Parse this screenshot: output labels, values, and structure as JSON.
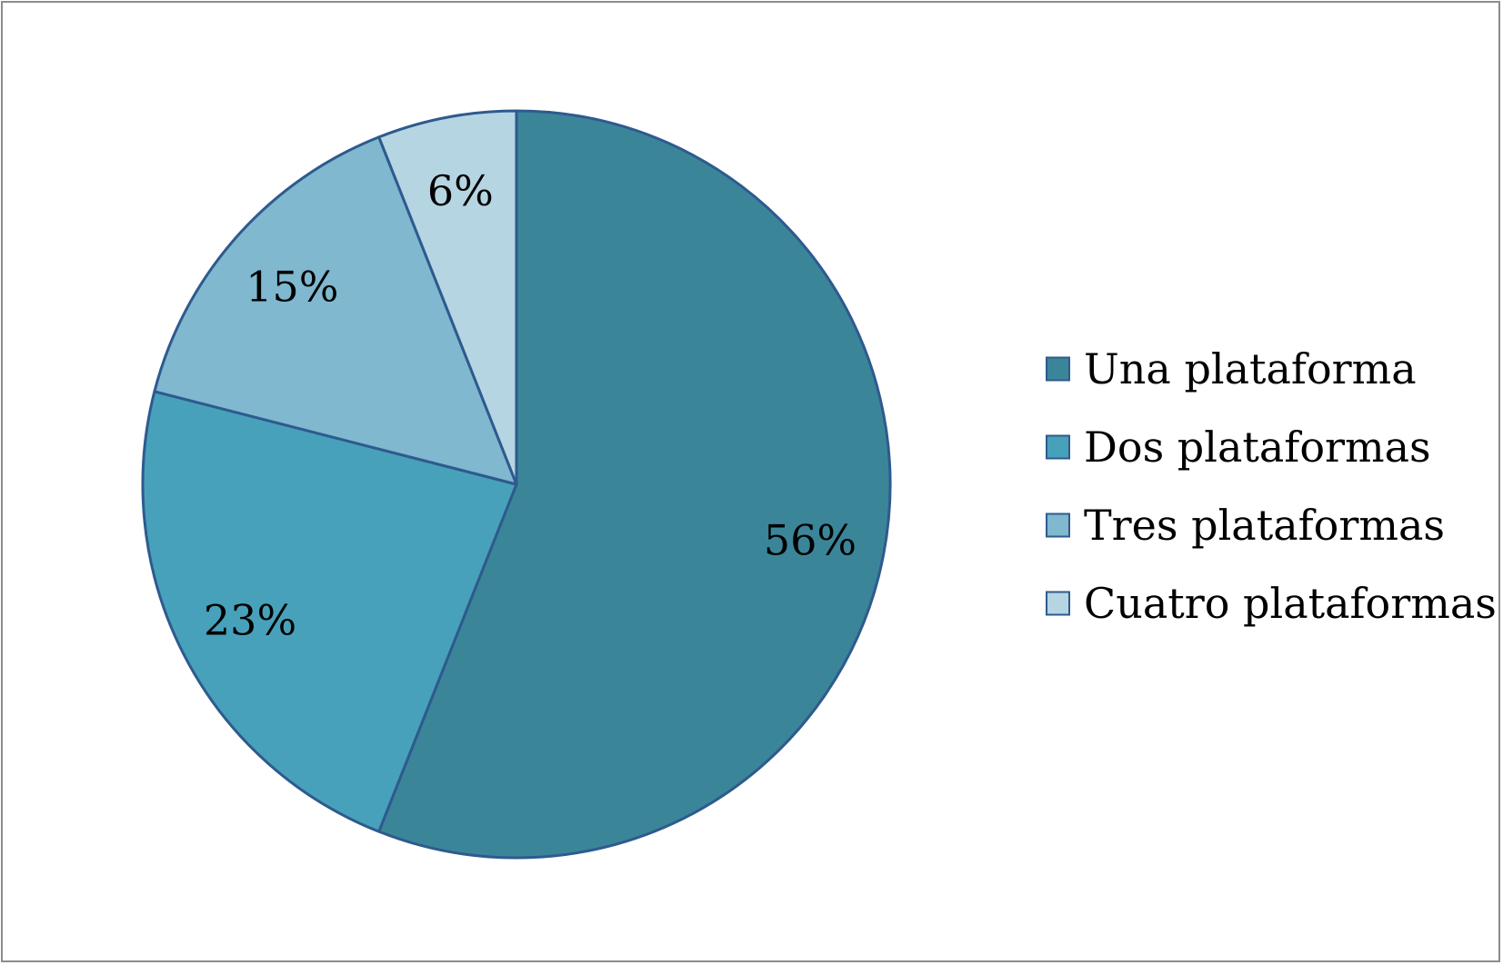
{
  "chart_data": {
    "type": "pie",
    "title": "",
    "slices": [
      {
        "label": "Una plataforma",
        "value": 56,
        "value_label": "56%",
        "color": "#3B8599"
      },
      {
        "label": "Dos plataformas",
        "value": 23,
        "value_label": "23%",
        "color": "#48A1BA"
      },
      {
        "label": "Tres plataformas",
        "value": 15,
        "value_label": "15%",
        "color": "#7FB8CF"
      },
      {
        "label": "Cuatro plataformas",
        "value": 6,
        "value_label": "6%",
        "color": "#B6D5E2"
      }
    ],
    "start_angle": "12 o'clock",
    "direction": "clockwise",
    "legend_position": "right",
    "slice_border_color": "#2E5A8E"
  }
}
